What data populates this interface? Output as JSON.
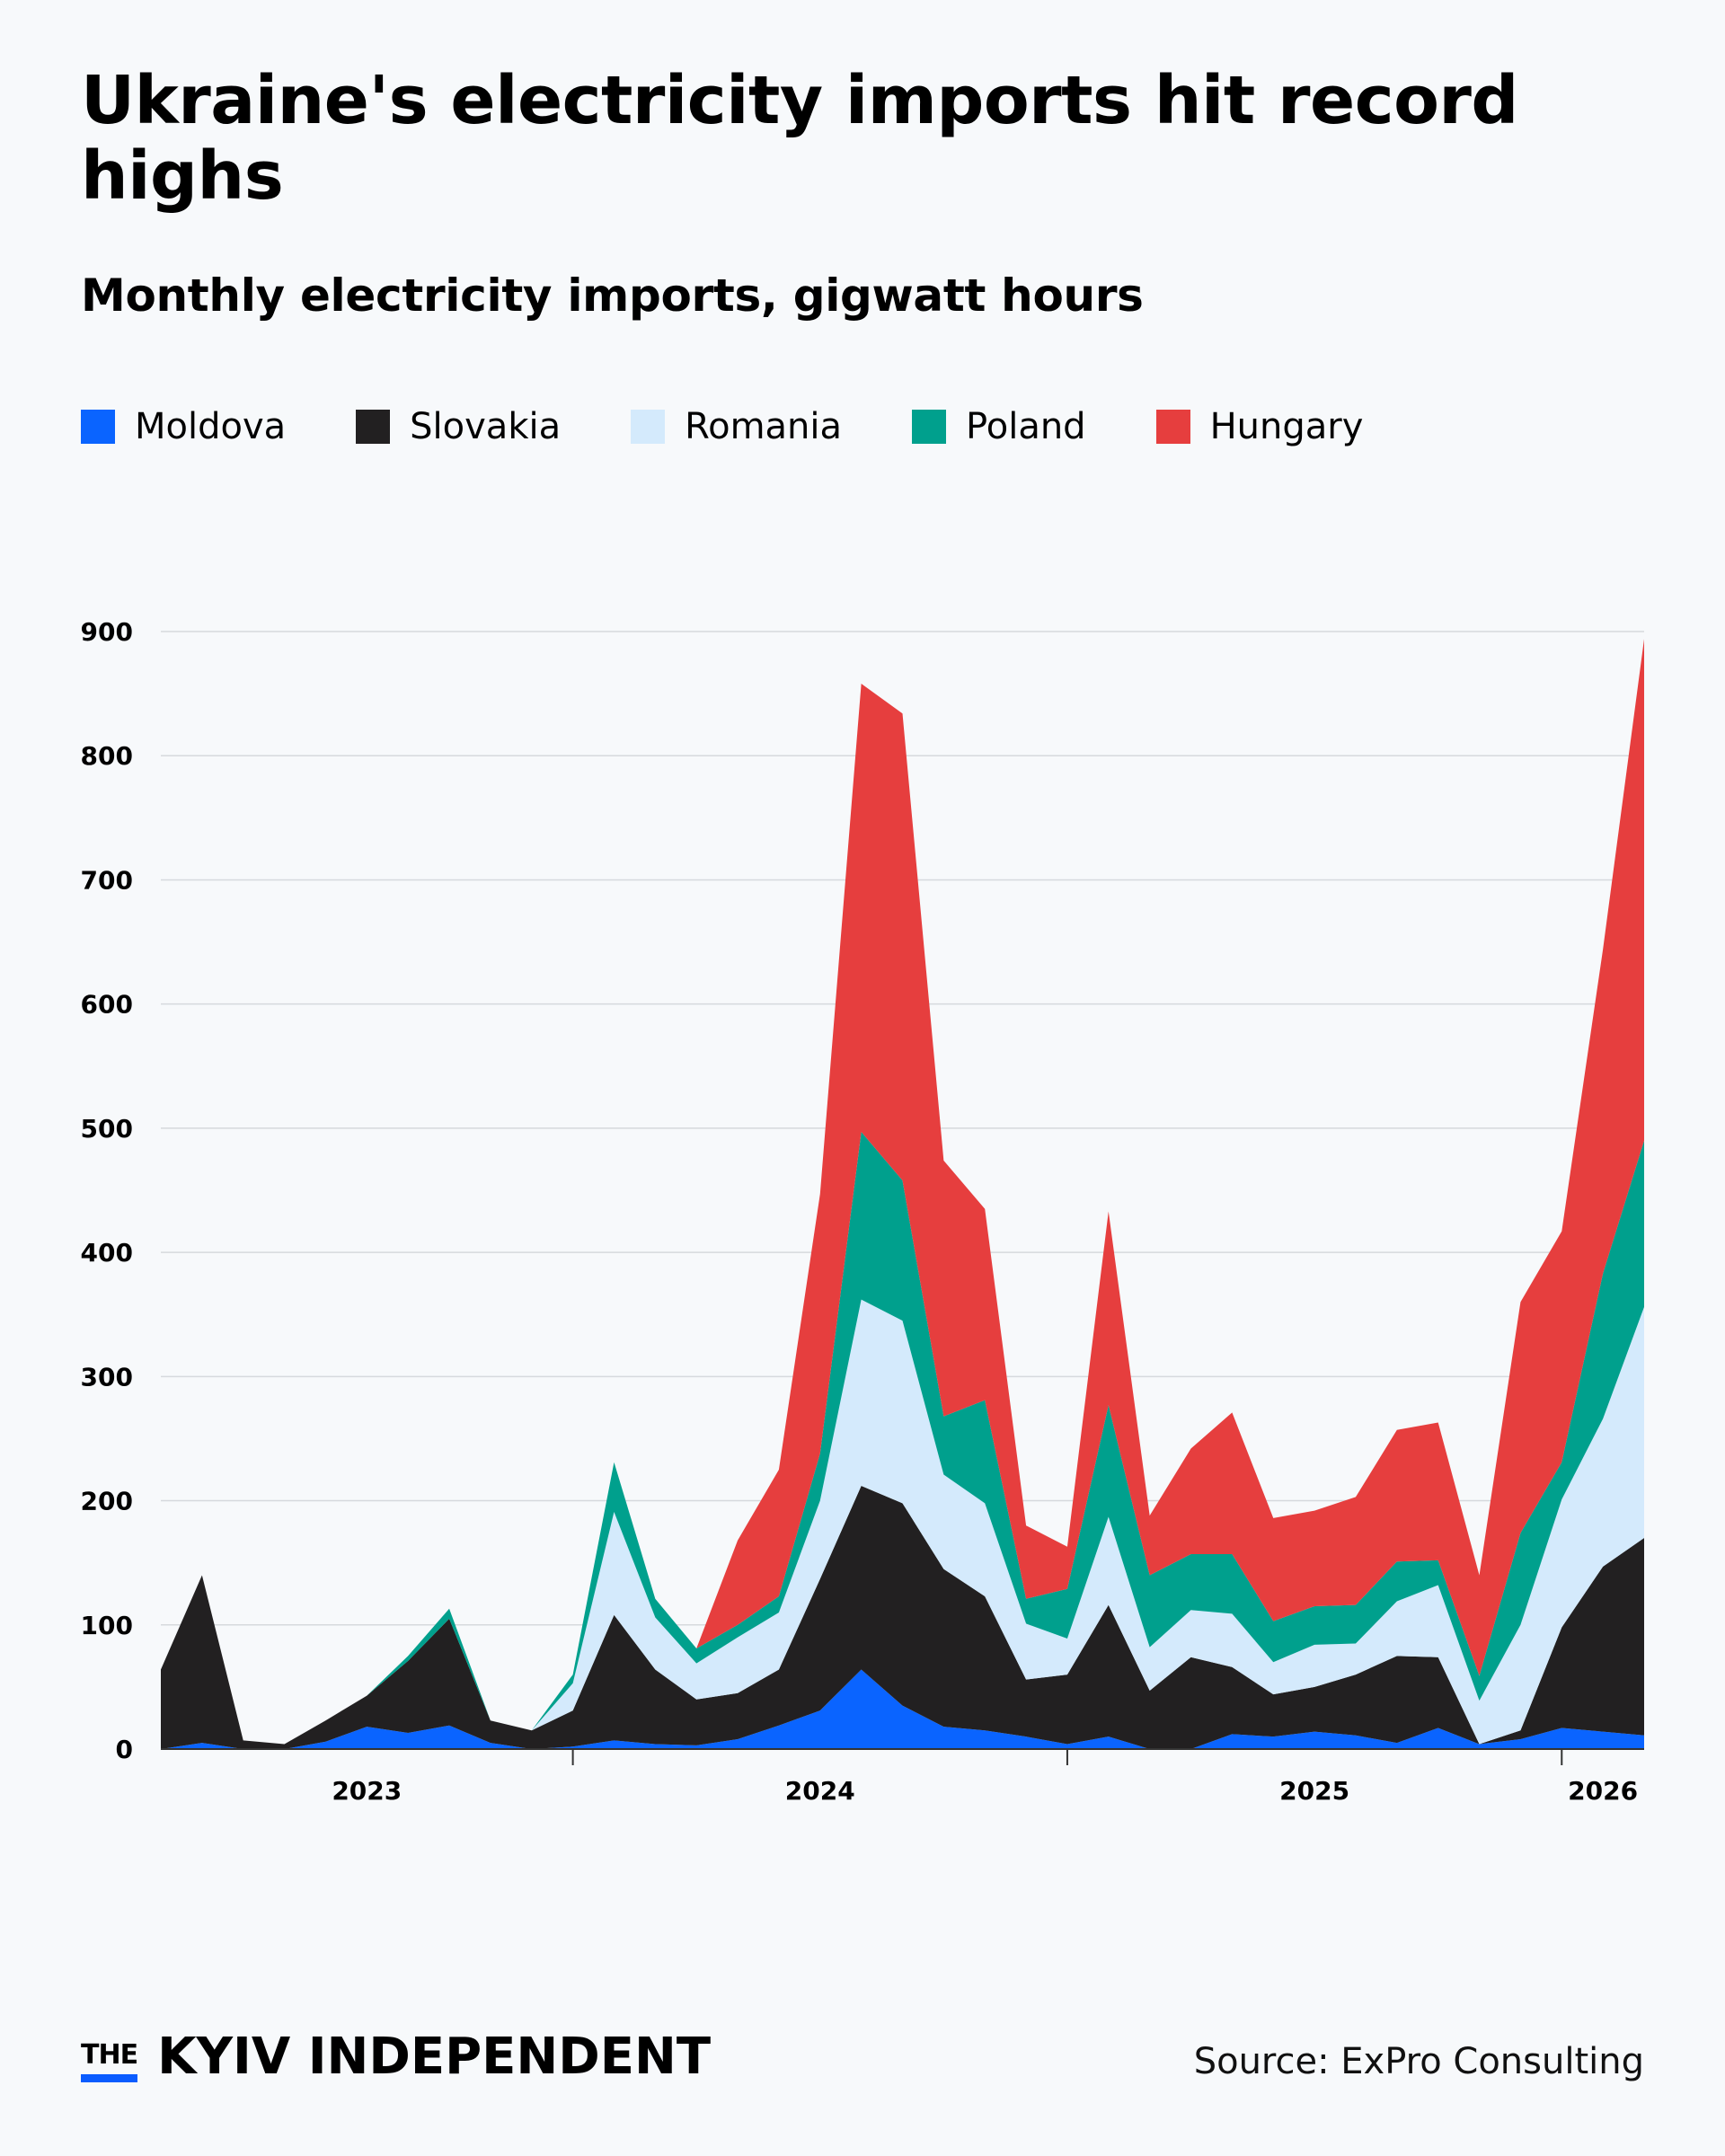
{
  "header": {
    "title": "Ukraine's electricity imports hit record highs",
    "subtitle": "Monthly electricity imports, gigwatt hours"
  },
  "footer": {
    "logo_the": "THE",
    "logo_main": "KYIV INDEPENDENT",
    "source": "Source: ExPro Consulting"
  },
  "colors": {
    "background": "#f7f9fb",
    "Moldova": "#0a64ff",
    "Slovakia": "#222021",
    "Romania": "#d4eafc",
    "Poland": "#00a08d",
    "Hungary": "#e63e3e",
    "logo_accent": "#0a5cff"
  },
  "chart_data": {
    "type": "area",
    "stacked": true,
    "title": "Ukraine's electricity imports hit record highs",
    "subtitle": "Monthly electricity imports, gigwatt hours",
    "xlabel": "",
    "ylabel": "",
    "ylim": [
      0,
      900
    ],
    "yticks": [
      0,
      100,
      200,
      300,
      400,
      500,
      600,
      700,
      800,
      900
    ],
    "ytick_labels": [
      "0",
      "100",
      "200",
      "300",
      "400",
      "500",
      "600",
      "700",
      "800",
      "900"
    ],
    "xtick_labels": [
      "2023",
      "2024",
      "2025",
      "2026"
    ],
    "grid": "horizontal",
    "legend_placement": "top-left",
    "x": [
      "2023-02",
      "2023-03",
      "2023-04",
      "2023-05",
      "2023-06",
      "2023-07",
      "2023-08",
      "2023-09",
      "2023-10",
      "2023-11",
      "2023-12",
      "2024-01",
      "2024-02",
      "2024-03",
      "2024-04",
      "2024-05",
      "2024-06",
      "2024-07",
      "2024-08",
      "2024-09",
      "2024-10",
      "2024-11",
      "2024-12",
      "2025-01",
      "2025-02",
      "2025-03",
      "2025-04",
      "2025-05",
      "2025-06",
      "2025-07",
      "2025-08",
      "2025-09",
      "2025-10",
      "2025-11",
      "2025-12",
      "2026-01",
      "2026-02"
    ],
    "series": [
      {
        "name": "Moldova",
        "values": [
          0,
          5,
          0,
          0,
          6,
          18,
          13,
          19,
          5,
          0,
          2,
          7,
          4,
          3,
          8,
          19,
          31,
          64,
          35,
          18,
          15,
          10,
          4,
          10,
          0,
          0,
          12,
          10,
          14,
          11,
          5,
          17,
          4,
          8,
          17,
          14,
          11
        ]
      },
      {
        "name": "Slovakia",
        "values": [
          64,
          135,
          7,
          4,
          17,
          25,
          58,
          86,
          18,
          15,
          29,
          101,
          60,
          37,
          37,
          45,
          106,
          148,
          163,
          127,
          108,
          46,
          56,
          106,
          47,
          74,
          54,
          34,
          36,
          49,
          70,
          57,
          0,
          7,
          81,
          133,
          159
        ]
      },
      {
        "name": "Romania",
        "values": [
          0,
          0,
          0,
          0,
          0,
          0,
          0,
          0,
          0,
          0,
          22,
          83,
          42,
          29,
          45,
          46,
          63,
          150,
          147,
          76,
          75,
          45,
          29,
          71,
          35,
          38,
          43,
          26,
          34,
          25,
          44,
          58,
          35,
          85,
          103,
          119,
          186
        ]
      },
      {
        "name": "Poland",
        "values": [
          0,
          0,
          0,
          0,
          0,
          0,
          4,
          8,
          0,
          0,
          7,
          40,
          15,
          12,
          10,
          13,
          38,
          135,
          113,
          47,
          83,
          20,
          40,
          90,
          58,
          45,
          48,
          33,
          31,
          31,
          32,
          20,
          20,
          74,
          30,
          117,
          134
        ]
      },
      {
        "name": "Hungary",
        "values": [
          0,
          0,
          0,
          0,
          0,
          0,
          0,
          0,
          0,
          0,
          0,
          0,
          0,
          0,
          68,
          102,
          209,
          361,
          376,
          206,
          154,
          59,
          34,
          156,
          48,
          85,
          114,
          83,
          77,
          87,
          106,
          111,
          81,
          186,
          186,
          261,
          404
        ]
      }
    ]
  }
}
